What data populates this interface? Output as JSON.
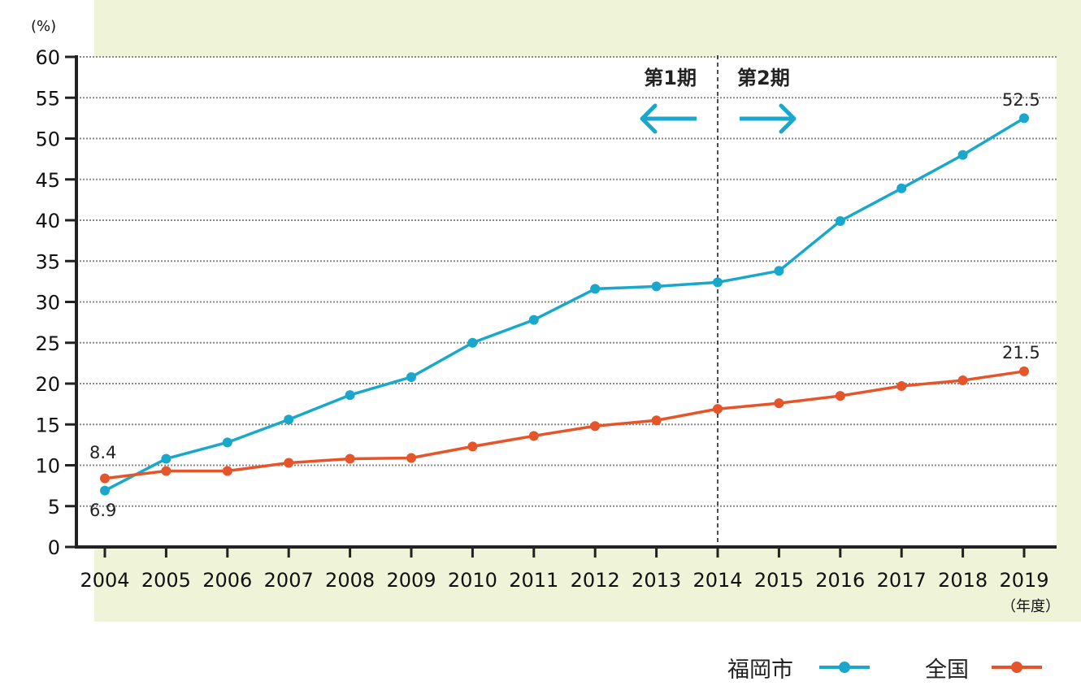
{
  "colors": {
    "background_panel": "#eff4d9",
    "fukuoka": "#19a8cb",
    "national": "#e6542a",
    "grid": "#888888",
    "axis": "#222222"
  },
  "axis": {
    "y_unit": "(%)",
    "x_unit": "（年度）"
  },
  "periods": {
    "phase1_label": "第1期",
    "phase2_label": "第2期",
    "divider_year": 2014,
    "arrow_direction_phase1": "left",
    "arrow_direction_phase2": "right"
  },
  "legend": {
    "fukuoka_label": "福岡市",
    "national_label": "全国",
    "placement": "bottom-right"
  },
  "chart_data": {
    "type": "line",
    "x": [
      2004,
      2005,
      2006,
      2007,
      2008,
      2009,
      2010,
      2011,
      2012,
      2013,
      2014,
      2015,
      2016,
      2017,
      2018,
      2019
    ],
    "x_tick_labels": [
      "2004",
      "2005",
      "2006",
      "2007",
      "2008",
      "2009",
      "2010",
      "2011",
      "2012",
      "2013",
      "2014",
      "2015",
      "2016",
      "2017",
      "2018",
      "2019"
    ],
    "y_ticks": [
      0,
      5,
      10,
      15,
      20,
      25,
      30,
      35,
      40,
      45,
      50,
      55,
      60
    ],
    "ylim": [
      0,
      60
    ],
    "grid": true,
    "series": [
      {
        "name": "福岡市",
        "color_key": "fukuoka",
        "values": [
          6.9,
          10.8,
          12.8,
          15.6,
          18.6,
          20.8,
          25.0,
          27.8,
          31.6,
          31.9,
          32.4,
          33.8,
          39.9,
          43.9,
          48.0,
          52.5
        ],
        "labels": {
          "first": "6.9",
          "last": "52.5"
        }
      },
      {
        "name": "全国",
        "color_key": "national",
        "values": [
          8.4,
          9.3,
          9.3,
          10.3,
          10.8,
          10.9,
          12.3,
          13.6,
          14.8,
          15.5,
          16.9,
          17.6,
          18.5,
          19.7,
          20.4,
          21.5
        ],
        "labels": {
          "first": "8.4",
          "last": "21.5"
        }
      }
    ]
  }
}
